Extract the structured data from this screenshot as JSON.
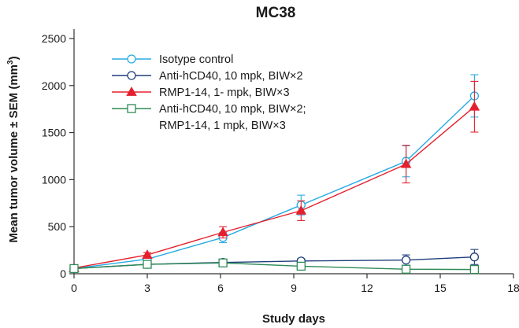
{
  "chart_data": {
    "type": "line",
    "title": "MC38",
    "xlabel": "Study days",
    "ylabel": "Mean tumor volume ± SEM (mm",
    "ylabel_superscript": "3",
    "ylabel_close": ")",
    "xlim": [
      0,
      18
    ],
    "ylim": [
      0,
      2600
    ],
    "x_ticks": [
      0,
      3,
      6,
      9,
      12,
      15,
      18
    ],
    "y_ticks": [
      0,
      500,
      1000,
      1500,
      2000,
      2500
    ],
    "series": [
      {
        "name": "Isotype control",
        "label_lines": [
          "Isotype control"
        ],
        "color": "#29abe2",
        "marker": "circle",
        "filled": false,
        "x": [
          0,
          3,
          6.1,
          9.3,
          13.6,
          16.4
        ],
        "y": [
          55,
          155,
          385,
          730,
          1195,
          1890
        ],
        "err": [
          10,
          20,
          55,
          105,
          165,
          225
        ]
      },
      {
        "name": "Anti-hCD40, 10 mpk, BIW×2",
        "label_lines": [
          "Anti-hCD40, 10 mpk, BIW×2"
        ],
        "color": "#1f3e7c",
        "marker": "circle",
        "filled": false,
        "x": [
          0,
          3,
          6.1,
          9.3,
          13.6,
          16.4
        ],
        "y": [
          55,
          100,
          120,
          135,
          145,
          178
        ],
        "err": [
          10,
          15,
          20,
          25,
          55,
          80
        ]
      },
      {
        "name": "RMP1-14, 1- mpk, BIW×3",
        "label_lines": [
          "RMP1-14, 1- mpk, BIW×3"
        ],
        "color": "#e5202e",
        "marker": "triangle",
        "filled": true,
        "x": [
          0,
          3,
          6.1,
          9.3,
          13.6,
          16.4
        ],
        "y": [
          60,
          200,
          440,
          670,
          1165,
          1775
        ],
        "err": [
          10,
          25,
          60,
          105,
          200,
          270
        ]
      },
      {
        "name": "Anti-hCD40, 10 mpk, BIW×2; RMP1-14, 1 mpk, BIW×3",
        "label_lines": [
          "Anti-hCD40, 10 mpk, BIW×2;",
          "RMP1-14, 1 mpk, BIW×3"
        ],
        "color": "#2e8b57",
        "marker": "square",
        "filled": false,
        "x": [
          0,
          3,
          6.1,
          9.3,
          13.6,
          16.4
        ],
        "y": [
          55,
          100,
          115,
          80,
          48,
          45
        ],
        "err": [
          8,
          12,
          15,
          12,
          8,
          8
        ]
      }
    ]
  }
}
